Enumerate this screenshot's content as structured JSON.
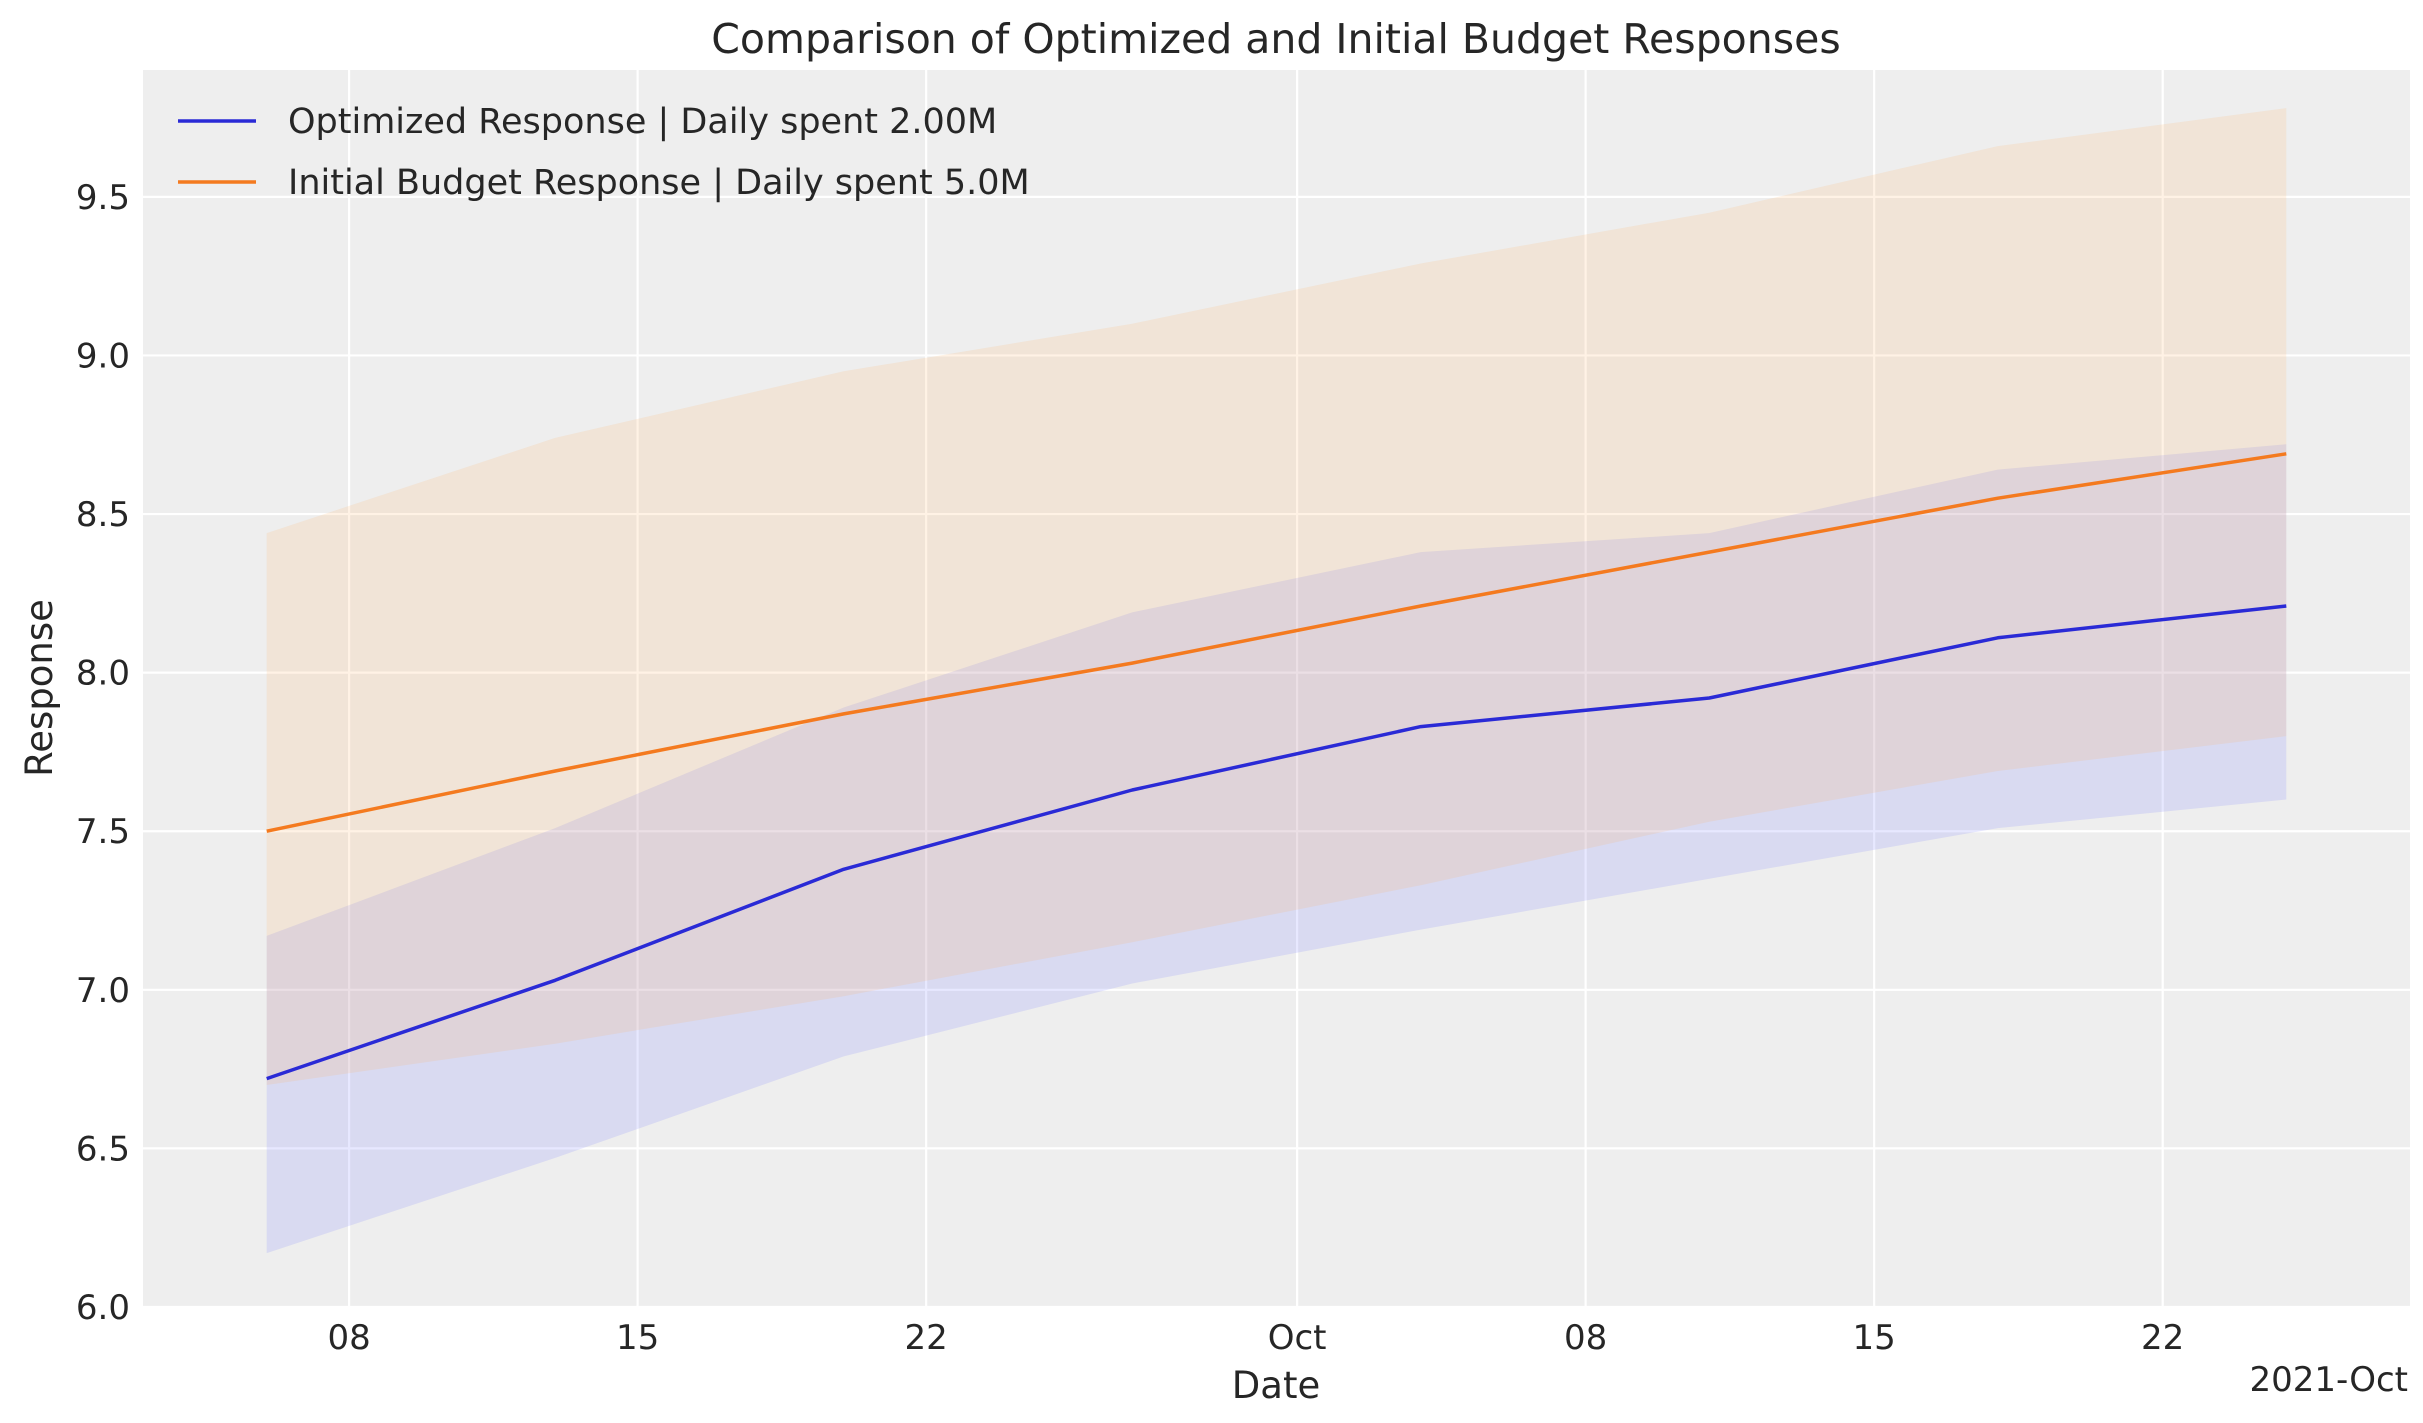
{
  "chart_data": {
    "type": "line",
    "title": "Comparison of Optimized and Initial Budget Responses",
    "xlabel": "Date",
    "ylabel": "Response",
    "x_offset_label": "2021-Oct",
    "xlim": [
      "2021-09-03",
      "2021-10-28"
    ],
    "ylim": [
      6.0,
      9.9
    ],
    "grid": true,
    "legend_position": "top-left",
    "x_ticks": [
      {
        "date": "2021-09-08",
        "label": "08"
      },
      {
        "date": "2021-09-15",
        "label": "15"
      },
      {
        "date": "2021-09-22",
        "label": "22"
      },
      {
        "date": "2021-10-01",
        "label": "Oct"
      },
      {
        "date": "2021-10-08",
        "label": "08"
      },
      {
        "date": "2021-10-15",
        "label": "15"
      },
      {
        "date": "2021-10-22",
        "label": "22"
      }
    ],
    "y_ticks": [
      {
        "value": 6.0,
        "label": "6.0"
      },
      {
        "value": 6.5,
        "label": "6.5"
      },
      {
        "value": 7.0,
        "label": "7.0"
      },
      {
        "value": 7.5,
        "label": "7.5"
      },
      {
        "value": 8.0,
        "label": "8.0"
      },
      {
        "value": 8.5,
        "label": "8.5"
      },
      {
        "value": 9.0,
        "label": "9.0"
      },
      {
        "value": 9.5,
        "label": "9.5"
      }
    ],
    "x": [
      "2021-09-06",
      "2021-09-13",
      "2021-09-20",
      "2021-09-27",
      "2021-10-04",
      "2021-10-11",
      "2021-10-18",
      "2021-10-25"
    ],
    "series": [
      {
        "name": "Optimized Response | Daily spent 2.00M",
        "color": "#2a2ad6",
        "values": [
          6.72,
          7.03,
          7.38,
          7.63,
          7.83,
          7.92,
          8.11,
          8.21
        ],
        "lower": [
          6.17,
          6.47,
          6.79,
          7.02,
          7.19,
          7.35,
          7.51,
          7.6
        ],
        "upper": [
          7.17,
          7.51,
          7.89,
          8.19,
          8.38,
          8.44,
          8.64,
          8.72
        ]
      },
      {
        "name": "Initial Budget Response | Daily spent 5.0M",
        "color": "#f47a1f",
        "values": [
          7.5,
          7.69,
          7.87,
          8.03,
          8.21,
          8.38,
          8.55,
          8.69
        ],
        "lower": [
          6.7,
          6.83,
          6.98,
          7.15,
          7.33,
          7.53,
          7.69,
          7.8
        ],
        "upper": [
          8.44,
          8.74,
          8.95,
          9.1,
          9.29,
          9.45,
          9.66,
          9.78
        ]
      }
    ]
  }
}
